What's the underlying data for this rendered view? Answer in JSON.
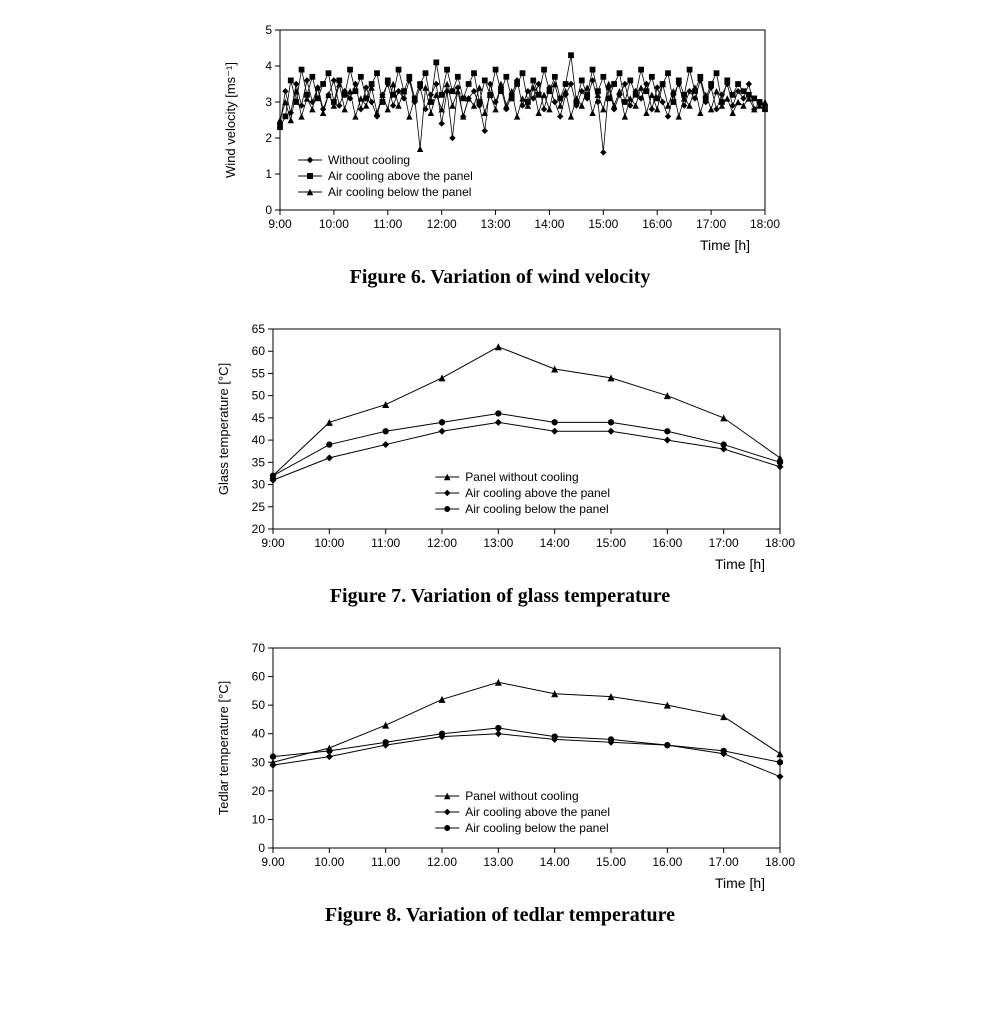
{
  "fig6": {
    "caption": "Figure 6. Variation of wind velocity",
    "type": "line",
    "xlabel": "Time [h]",
    "ylabel": "Wind velocity [ms⁻¹]",
    "xlim": [
      9,
      18
    ],
    "ylim": [
      0,
      5
    ],
    "xtick_labels": [
      "9:00",
      "10:00",
      "11:00",
      "12:00",
      "13:00",
      "14:00",
      "15:00",
      "16:00",
      "17:00",
      "18:00"
    ],
    "ytick_step": 1,
    "axis_color": "#000000",
    "line_color": "#000000",
    "line_width": 0.8,
    "marker_size": 3.2,
    "legend": {
      "position": "inside-lower-left",
      "items": [
        {
          "label": "Without cooling",
          "marker": "diamond"
        },
        {
          "label": "Air cooling above the panel",
          "marker": "square"
        },
        {
          "label": "Air cooling below the panel",
          "marker": "triangle"
        }
      ]
    },
    "x_values": [
      9.0,
      9.1,
      9.2,
      9.3,
      9.4,
      9.5,
      9.6,
      9.7,
      9.8,
      9.9,
      10.0,
      10.1,
      10.2,
      10.3,
      10.4,
      10.5,
      10.6,
      10.7,
      10.8,
      10.9,
      11.0,
      11.1,
      11.2,
      11.3,
      11.4,
      11.5,
      11.6,
      11.7,
      11.8,
      11.9,
      12.0,
      12.1,
      12.2,
      12.3,
      12.4,
      12.5,
      12.6,
      12.7,
      12.8,
      12.9,
      13.0,
      13.1,
      13.2,
      13.3,
      13.4,
      13.5,
      13.6,
      13.7,
      13.8,
      13.9,
      14.0,
      14.1,
      14.2,
      14.3,
      14.4,
      14.5,
      14.6,
      14.7,
      14.8,
      14.9,
      15.0,
      15.1,
      15.2,
      15.3,
      15.4,
      15.5,
      15.6,
      15.7,
      15.8,
      15.9,
      16.0,
      16.1,
      16.2,
      16.3,
      16.4,
      16.5,
      16.6,
      16.7,
      16.8,
      16.9,
      17.0,
      17.1,
      17.2,
      17.3,
      17.4,
      17.5,
      17.6,
      17.7,
      17.8,
      17.9,
      18.0
    ],
    "series": [
      {
        "name": "without",
        "marker": "diamond",
        "y": [
          2.4,
          3.3,
          2.7,
          3.5,
          2.9,
          3.6,
          3.0,
          3.4,
          2.8,
          3.2,
          3.6,
          2.9,
          3.3,
          3.1,
          3.5,
          2.8,
          3.4,
          3.0,
          2.6,
          3.2,
          3.5,
          2.9,
          3.3,
          3.1,
          3.6,
          3.0,
          3.4,
          2.8,
          3.2,
          3.5,
          2.4,
          3.3,
          2.0,
          3.4,
          2.6,
          3.1,
          3.3,
          2.9,
          2.2,
          3.5,
          3.0,
          3.4,
          2.8,
          3.2,
          3.6,
          2.9,
          3.3,
          3.1,
          3.5,
          2.8,
          3.4,
          3.0,
          2.6,
          3.2,
          3.5,
          2.9,
          3.3,
          3.1,
          3.6,
          3.0,
          1.6,
          3.4,
          2.8,
          3.2,
          3.5,
          2.9,
          3.3,
          3.1,
          3.5,
          2.8,
          3.4,
          3.0,
          2.6,
          3.2,
          3.5,
          2.9,
          3.3,
          3.1,
          3.6,
          3.0,
          3.4,
          2.8,
          3.2,
          3.5,
          2.9,
          3.3,
          3.1,
          3.5,
          2.8,
          3.0,
          2.9
        ]
      },
      {
        "name": "above",
        "marker": "square",
        "y": [
          2.3,
          2.6,
          3.6,
          3.0,
          3.9,
          3.2,
          3.7,
          3.1,
          3.5,
          3.8,
          3.0,
          3.6,
          3.2,
          3.9,
          3.3,
          3.7,
          3.1,
          3.5,
          3.8,
          3.0,
          3.6,
          3.2,
          3.9,
          3.3,
          3.7,
          3.1,
          3.5,
          3.8,
          3.0,
          4.1,
          3.2,
          3.9,
          3.3,
          3.7,
          3.1,
          3.5,
          3.8,
          3.0,
          3.6,
          3.2,
          3.9,
          3.3,
          3.7,
          3.1,
          3.5,
          3.8,
          3.0,
          3.6,
          3.2,
          3.9,
          3.3,
          3.7,
          3.1,
          3.5,
          4.3,
          3.0,
          3.6,
          3.2,
          3.9,
          3.3,
          3.7,
          3.1,
          3.5,
          3.8,
          3.0,
          3.6,
          3.2,
          3.9,
          3.3,
          3.7,
          3.1,
          3.5,
          3.8,
          3.0,
          3.6,
          3.2,
          3.9,
          3.3,
          3.7,
          3.1,
          3.5,
          3.8,
          3.0,
          3.6,
          3.2,
          3.5,
          3.3,
          3.2,
          3.1,
          3.0,
          2.8
        ]
      },
      {
        "name": "below",
        "marker": "triangle",
        "y": [
          2.5,
          3.0,
          2.5,
          3.3,
          2.6,
          3.1,
          2.8,
          3.4,
          2.7,
          3.2,
          2.9,
          3.5,
          2.8,
          3.3,
          2.6,
          3.1,
          2.9,
          3.4,
          2.7,
          3.2,
          2.8,
          3.5,
          2.9,
          3.3,
          2.6,
          3.1,
          1.7,
          3.4,
          2.7,
          3.2,
          2.8,
          3.5,
          2.9,
          3.3,
          2.6,
          3.1,
          2.9,
          3.4,
          2.7,
          3.2,
          2.8,
          3.5,
          2.9,
          3.3,
          2.6,
          3.1,
          2.9,
          3.4,
          2.7,
          3.2,
          2.8,
          3.5,
          2.9,
          3.3,
          2.6,
          3.1,
          2.9,
          3.4,
          2.7,
          3.2,
          2.8,
          3.5,
          2.9,
          3.3,
          2.6,
          3.1,
          2.9,
          3.4,
          2.7,
          3.2,
          2.8,
          3.5,
          2.9,
          3.3,
          2.6,
          3.1,
          2.9,
          3.4,
          2.7,
          3.2,
          2.8,
          3.3,
          2.9,
          3.1,
          2.7,
          3.0,
          2.9,
          3.1,
          2.8,
          2.9,
          3.0
        ]
      }
    ]
  },
  "fig7": {
    "caption": "Figure 7. Variation of glass temperature",
    "type": "line",
    "xlabel": "Time [h]",
    "ylabel": "Glass temperature [°C]",
    "xlim": [
      9,
      18
    ],
    "ylim": [
      20,
      65
    ],
    "xtick_labels": [
      "9:00",
      "10:00",
      "11:00",
      "12:00",
      "13:00",
      "14:00",
      "15:00",
      "16:00",
      "17:00",
      "18:00"
    ],
    "ytick_step": 5,
    "axis_color": "#000000",
    "line_color": "#000000",
    "line_width": 1,
    "marker_size": 3.5,
    "legend": {
      "position": "inside-lower-center",
      "items": [
        {
          "label": "Panel without cooling",
          "marker": "triangle"
        },
        {
          "label": "Air cooling above the panel",
          "marker": "diamond"
        },
        {
          "label": "Air cooling below the panel",
          "marker": "circle"
        }
      ]
    },
    "x_values": [
      9,
      10,
      11,
      12,
      13,
      14,
      15,
      16,
      17,
      18
    ],
    "series": [
      {
        "name": "without",
        "marker": "triangle",
        "y": [
          32,
          44,
          48,
          54,
          61,
          56,
          54,
          50,
          45,
          36
        ]
      },
      {
        "name": "above",
        "marker": "diamond",
        "y": [
          31,
          36,
          39,
          42,
          44,
          42,
          42,
          40,
          38,
          34
        ]
      },
      {
        "name": "below",
        "marker": "circle",
        "y": [
          32,
          39,
          42,
          44,
          46,
          44,
          44,
          42,
          39,
          35
        ]
      }
    ]
  },
  "fig8": {
    "caption": "Figure 8. Variation of tedlar temperature",
    "type": "line",
    "xlabel": "Time [h]",
    "ylabel": "Tedlar temperature [°C]",
    "xlim": [
      9,
      18
    ],
    "ylim": [
      0,
      70
    ],
    "xtick_labels": [
      "9.00",
      "10.00",
      "11.00",
      "12.00",
      "13.00",
      "14.00",
      "15.00",
      "16.00",
      "17.00",
      "18.00"
    ],
    "ytick_step": 10,
    "axis_color": "#000000",
    "line_color": "#000000",
    "line_width": 1,
    "marker_size": 3.5,
    "legend": {
      "position": "inside-lower-center",
      "items": [
        {
          "label": "Panel without cooling",
          "marker": "triangle"
        },
        {
          "label": "Air cooling above the panel",
          "marker": "diamond"
        },
        {
          "label": "Air cooling below the panel",
          "marker": "circle"
        }
      ]
    },
    "x_values": [
      9,
      10,
      11,
      12,
      13,
      14,
      15,
      16,
      17,
      18
    ],
    "series": [
      {
        "name": "without",
        "marker": "triangle",
        "y": [
          30,
          35,
          43,
          52,
          58,
          54,
          53,
          50,
          46,
          33
        ]
      },
      {
        "name": "above",
        "marker": "diamond",
        "y": [
          29,
          32,
          36,
          39,
          40,
          38,
          37,
          36,
          33,
          25
        ]
      },
      {
        "name": "below",
        "marker": "circle",
        "y": [
          32,
          34,
          37,
          40,
          42,
          39,
          38,
          36,
          34,
          30
        ]
      }
    ]
  }
}
